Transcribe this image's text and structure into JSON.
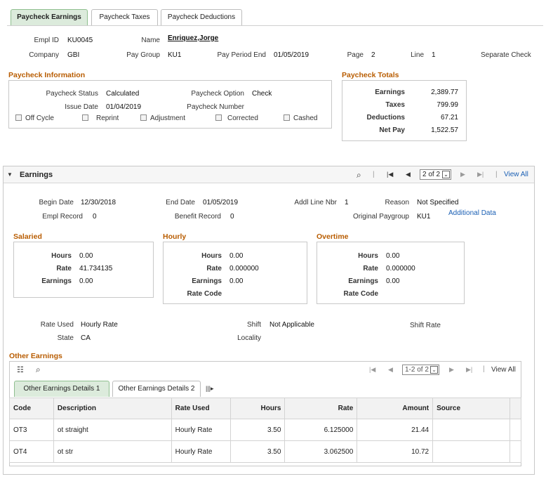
{
  "tabs": [
    {
      "label": "Paycheck Earnings"
    },
    {
      "label": "Paycheck Taxes"
    },
    {
      "label": "Paycheck Deductions"
    }
  ],
  "header": {
    "empl_id_label": "Empl ID",
    "empl_id": "KU0045",
    "name_label": "Name",
    "name": "Enriquez,Jorge",
    "company_label": "Company",
    "company": "GBI",
    "pay_group_label": "Pay Group",
    "pay_group": "KU1",
    "pay_period_end_label": "Pay Period End",
    "pay_period_end": "01/05/2019",
    "page_label": "Page",
    "page": "2",
    "line_label": "Line",
    "line": "1",
    "separate_check_label": "Separate Check"
  },
  "paycheck_info": {
    "title": "Paycheck Information",
    "status_label": "Paycheck Status",
    "status": "Calculated",
    "option_label": "Paycheck Option",
    "option": "Check",
    "issue_date_label": "Issue Date",
    "issue_date": "01/04/2019",
    "number_label": "Paycheck Number",
    "off_cycle": "Off Cycle",
    "reprint": "Reprint",
    "adjustment": "Adjustment",
    "corrected": "Corrected",
    "cashed": "Cashed"
  },
  "totals": {
    "title": "Paycheck Totals",
    "earnings_label": "Earnings",
    "earnings": "2,389.77",
    "taxes_label": "Taxes",
    "taxes": "799.99",
    "deductions_label": "Deductions",
    "deductions": "67.21",
    "net_pay_label": "Net Pay",
    "net_pay": "1,522.57"
  },
  "earnings": {
    "title": "Earnings",
    "nav_page": "2 of 2",
    "view_all": "View All",
    "begin_date_label": "Begin Date",
    "begin_date": "12/30/2018",
    "end_date_label": "End Date",
    "end_date": "01/05/2019",
    "addl_line_label": "Addl Line Nbr",
    "addl_line": "1",
    "reason_label": "Reason",
    "reason": "Not Specified",
    "empl_record_label": "Empl Record",
    "empl_record": "0",
    "benefit_record_label": "Benefit Record",
    "benefit_record": "0",
    "orig_paygroup_label": "Original Paygroup",
    "orig_paygroup": "KU1",
    "additional_data": "Additional Data",
    "salaried": {
      "title": "Salaried",
      "hours_label": "Hours",
      "hours": "0.00",
      "rate_label": "Rate",
      "rate": "41.734135",
      "earnings_label": "Earnings",
      "earnings": "0.00"
    },
    "hourly": {
      "title": "Hourly",
      "hours_label": "Hours",
      "hours": "0.00",
      "rate_label": "Rate",
      "rate": "0.000000",
      "earnings_label": "Earnings",
      "earnings": "0.00",
      "rate_code_label": "Rate Code"
    },
    "overtime": {
      "title": "Overtime",
      "hours_label": "Hours",
      "hours": "0.00",
      "rate_label": "Rate",
      "rate": "0.000000",
      "earnings_label": "Earnings",
      "earnings": "0.00",
      "rate_code_label": "Rate Code"
    },
    "rate_used_label": "Rate Used",
    "rate_used": "Hourly Rate",
    "shift_label": "Shift",
    "shift": "Not Applicable",
    "shift_rate_label": "Shift Rate",
    "state_label": "State",
    "state": "CA",
    "locality_label": "Locality"
  },
  "other_earnings": {
    "title": "Other Earnings",
    "nav_page": "1-2 of 2",
    "view_all": "View All",
    "subtabs": [
      "Other Earnings Details 1",
      "Other Earnings Details 2"
    ],
    "columns": [
      "Code",
      "Description",
      "Rate Used",
      "Hours",
      "Rate",
      "Amount",
      "Source"
    ],
    "rows": [
      {
        "code": "OT3",
        "description": "ot straight",
        "rate_used": "Hourly Rate",
        "hours": "3.50",
        "rate": "6.125000",
        "amount": "21.44",
        "source": ""
      },
      {
        "code": "OT4",
        "description": "ot str",
        "rate_used": "Hourly Rate",
        "hours": "3.50",
        "rate": "3.062500",
        "amount": "10.72",
        "source": ""
      }
    ]
  },
  "icons": {
    "search": "search-icon",
    "first": "first-page-icon",
    "prev": "previous-icon",
    "next": "next-icon",
    "last": "last-page-icon",
    "personalize": "personalize-grid-icon",
    "collapse": "collapse-triangle-icon",
    "dropdown": "chevron-down-icon",
    "show_all_cols": "show-all-columns-icon"
  },
  "colors": {
    "section_title": "#b85c00",
    "active_tab": "#dcebdc",
    "link": "#1a5fb4"
  }
}
